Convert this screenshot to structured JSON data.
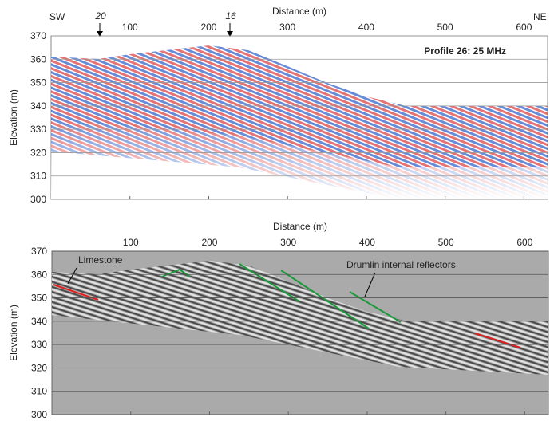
{
  "chart_data": [
    {
      "type": "radargram",
      "xlabel": "Distance (m)",
      "ylabel": "Elevation (m)",
      "xlim": [
        0,
        630
      ],
      "xticks": [
        100,
        200,
        300,
        400,
        500,
        600
      ],
      "ylim": [
        300,
        370
      ],
      "yticks": [
        300,
        310,
        320,
        330,
        340,
        350,
        360,
        370
      ],
      "grid": true,
      "annotations": [
        "SW",
        "NE",
        "20",
        "16",
        "Profile 26: 25 MHz"
      ]
    },
    {
      "type": "radargram",
      "xlabel": "Distance (m)",
      "ylabel": "Elevation (m)",
      "xlim": [
        0,
        630
      ],
      "xticks": [
        100,
        200,
        300,
        400,
        500,
        600
      ],
      "ylim": [
        300,
        370
      ],
      "yticks": [
        300,
        310,
        320,
        330,
        340,
        350,
        360,
        370
      ],
      "grid": true,
      "annotations": [
        "Limestone",
        "Drumlin internal reflectors"
      ]
    }
  ]
}
